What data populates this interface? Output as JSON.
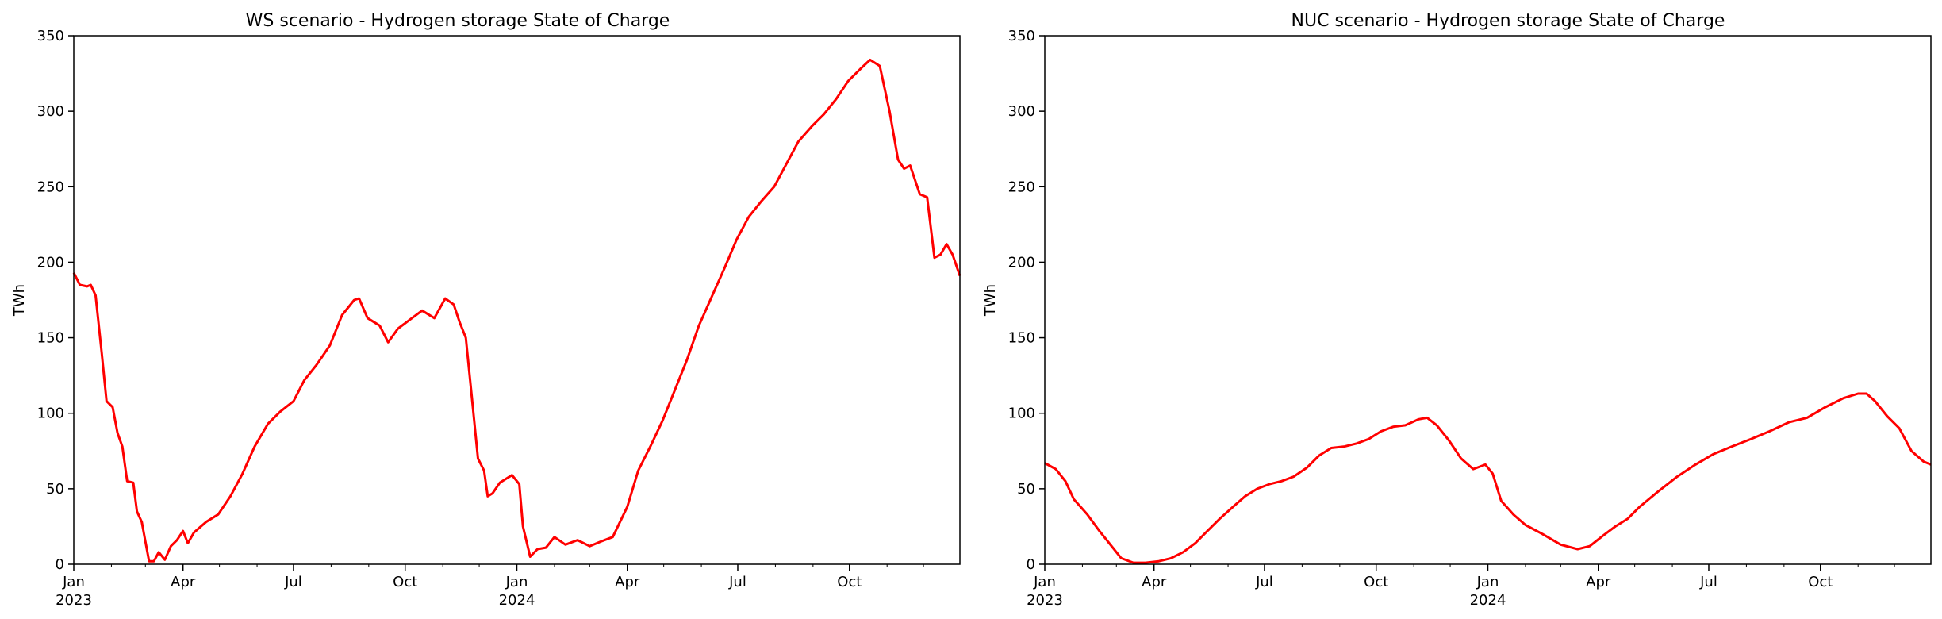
{
  "chart_data": [
    {
      "type": "line",
      "title": "WS scenario - Hydrogen storage State of Charge",
      "xlabel": "",
      "ylabel": "TWh",
      "ylim": [
        0,
        350
      ],
      "xlim": [
        "2023-01-01",
        "2024-12-31"
      ],
      "grid": false,
      "color": "#ff0000",
      "x_ticks": [
        {
          "date": "2023-01-01",
          "label": "Jan",
          "year": "2023"
        },
        {
          "date": "2023-04-01",
          "label": "Apr",
          "year": ""
        },
        {
          "date": "2023-07-01",
          "label": "Jul",
          "year": ""
        },
        {
          "date": "2023-10-01",
          "label": "Oct",
          "year": ""
        },
        {
          "date": "2024-01-01",
          "label": "Jan",
          "year": "2024"
        },
        {
          "date": "2024-04-01",
          "label": "Apr",
          "year": ""
        },
        {
          "date": "2024-07-01",
          "label": "Jul",
          "year": ""
        },
        {
          "date": "2024-10-01",
          "label": "Oct",
          "year": ""
        }
      ],
      "y_ticks": [
        0,
        50,
        100,
        150,
        200,
        250,
        300,
        350
      ],
      "series": [
        {
          "points": [
            [
              "2023-01-01",
              193
            ],
            [
              "2023-01-06",
              185
            ],
            [
              "2023-01-12",
              184
            ],
            [
              "2023-01-15",
              185
            ],
            [
              "2023-01-19",
              178
            ],
            [
              "2023-01-24",
              140
            ],
            [
              "2023-01-28",
              108
            ],
            [
              "2023-02-02",
              104
            ],
            [
              "2023-02-06",
              87
            ],
            [
              "2023-02-10",
              78
            ],
            [
              "2023-02-14",
              55
            ],
            [
              "2023-02-19",
              54
            ],
            [
              "2023-02-22",
              35
            ],
            [
              "2023-02-26",
              28
            ],
            [
              "2023-03-01",
              15
            ],
            [
              "2023-03-04",
              2
            ],
            [
              "2023-03-08",
              2
            ],
            [
              "2023-03-12",
              8
            ],
            [
              "2023-03-17",
              3
            ],
            [
              "2023-03-22",
              12
            ],
            [
              "2023-03-27",
              16
            ],
            [
              "2023-04-01",
              22
            ],
            [
              "2023-04-05",
              14
            ],
            [
              "2023-04-10",
              21
            ],
            [
              "2023-04-20",
              28
            ],
            [
              "2023-04-30",
              33
            ],
            [
              "2023-05-10",
              45
            ],
            [
              "2023-05-20",
              60
            ],
            [
              "2023-05-30",
              78
            ],
            [
              "2023-06-10",
              93
            ],
            [
              "2023-06-20",
              101
            ],
            [
              "2023-07-01",
              108
            ],
            [
              "2023-07-10",
              122
            ],
            [
              "2023-07-20",
              132
            ],
            [
              "2023-07-31",
              145
            ],
            [
              "2023-08-10",
              165
            ],
            [
              "2023-08-20",
              175
            ],
            [
              "2023-08-24",
              176
            ],
            [
              "2023-08-31",
              163
            ],
            [
              "2023-09-10",
              158
            ],
            [
              "2023-09-17",
              147
            ],
            [
              "2023-09-25",
              156
            ],
            [
              "2023-10-05",
              162
            ],
            [
              "2023-10-15",
              168
            ],
            [
              "2023-10-25",
              163
            ],
            [
              "2023-11-03",
              176
            ],
            [
              "2023-11-10",
              172
            ],
            [
              "2023-11-15",
              160
            ],
            [
              "2023-11-20",
              150
            ],
            [
              "2023-11-25",
              110
            ],
            [
              "2023-11-30",
              70
            ],
            [
              "2023-12-05",
              62
            ],
            [
              "2023-12-08",
              45
            ],
            [
              "2023-12-12",
              47
            ],
            [
              "2023-12-18",
              54
            ],
            [
              "2023-12-28",
              59
            ],
            [
              "2024-01-03",
              53
            ],
            [
              "2024-01-06",
              25
            ],
            [
              "2024-01-12",
              5
            ],
            [
              "2024-01-18",
              10
            ],
            [
              "2024-01-25",
              11
            ],
            [
              "2024-02-01",
              18
            ],
            [
              "2024-02-10",
              13
            ],
            [
              "2024-02-20",
              16
            ],
            [
              "2024-03-01",
              12
            ],
            [
              "2024-03-10",
              15
            ],
            [
              "2024-03-20",
              18
            ],
            [
              "2024-04-01",
              38
            ],
            [
              "2024-04-10",
              62
            ],
            [
              "2024-04-20",
              78
            ],
            [
              "2024-04-30",
              95
            ],
            [
              "2024-05-10",
              115
            ],
            [
              "2024-05-20",
              135
            ],
            [
              "2024-05-30",
              158
            ],
            [
              "2024-06-10",
              178
            ],
            [
              "2024-06-20",
              196
            ],
            [
              "2024-06-30",
              215
            ],
            [
              "2024-07-10",
              230
            ],
            [
              "2024-07-20",
              240
            ],
            [
              "2024-07-31",
              250
            ],
            [
              "2024-08-10",
              265
            ],
            [
              "2024-08-20",
              280
            ],
            [
              "2024-08-31",
              290
            ],
            [
              "2024-09-10",
              298
            ],
            [
              "2024-09-20",
              308
            ],
            [
              "2024-09-30",
              320
            ],
            [
              "2024-10-10",
              328
            ],
            [
              "2024-10-18",
              334
            ],
            [
              "2024-10-26",
              330
            ],
            [
              "2024-11-03",
              300
            ],
            [
              "2024-11-10",
              268
            ],
            [
              "2024-11-15",
              262
            ],
            [
              "2024-11-20",
              264
            ],
            [
              "2024-11-28",
              245
            ],
            [
              "2024-12-04",
              243
            ],
            [
              "2024-12-10",
              203
            ],
            [
              "2024-12-15",
              205
            ],
            [
              "2024-12-20",
              212
            ],
            [
              "2024-12-25",
              205
            ],
            [
              "2024-12-31",
              191
            ]
          ]
        }
      ]
    },
    {
      "type": "line",
      "title": "NUC scenario - Hydrogen storage State of Charge",
      "xlabel": "",
      "ylabel": "TWh",
      "ylim": [
        0,
        350
      ],
      "xlim": [
        "2023-01-01",
        "2024-12-31"
      ],
      "grid": false,
      "color": "#ff0000",
      "x_ticks": [
        {
          "date": "2023-01-01",
          "label": "Jan",
          "year": "2023"
        },
        {
          "date": "2023-04-01",
          "label": "Apr",
          "year": ""
        },
        {
          "date": "2023-07-01",
          "label": "Jul",
          "year": ""
        },
        {
          "date": "2023-10-01",
          "label": "Oct",
          "year": ""
        },
        {
          "date": "2024-01-01",
          "label": "Jan",
          "year": "2024"
        },
        {
          "date": "2024-04-01",
          "label": "Apr",
          "year": ""
        },
        {
          "date": "2024-07-01",
          "label": "Jul",
          "year": ""
        },
        {
          "date": "2024-10-01",
          "label": "Oct",
          "year": ""
        }
      ],
      "y_ticks": [
        0,
        50,
        100,
        150,
        200,
        250,
        300,
        350
      ],
      "series": [
        {
          "points": [
            [
              "2023-01-01",
              67
            ],
            [
              "2023-01-10",
              63
            ],
            [
              "2023-01-18",
              55
            ],
            [
              "2023-01-25",
              43
            ],
            [
              "2023-02-05",
              33
            ],
            [
              "2023-02-15",
              22
            ],
            [
              "2023-02-25",
              12
            ],
            [
              "2023-03-05",
              4
            ],
            [
              "2023-03-15",
              1
            ],
            [
              "2023-03-25",
              1
            ],
            [
              "2023-04-05",
              2
            ],
            [
              "2023-04-15",
              4
            ],
            [
              "2023-04-25",
              8
            ],
            [
              "2023-05-05",
              14
            ],
            [
              "2023-05-15",
              22
            ],
            [
              "2023-05-25",
              30
            ],
            [
              "2023-06-05",
              38
            ],
            [
              "2023-06-15",
              45
            ],
            [
              "2023-06-25",
              50
            ],
            [
              "2023-07-05",
              53
            ],
            [
              "2023-07-15",
              55
            ],
            [
              "2023-07-25",
              58
            ],
            [
              "2023-08-05",
              64
            ],
            [
              "2023-08-15",
              72
            ],
            [
              "2023-08-25",
              77
            ],
            [
              "2023-09-05",
              78
            ],
            [
              "2023-09-15",
              80
            ],
            [
              "2023-09-25",
              83
            ],
            [
              "2023-10-05",
              88
            ],
            [
              "2023-10-15",
              91
            ],
            [
              "2023-10-25",
              92
            ],
            [
              "2023-11-05",
              96
            ],
            [
              "2023-11-12",
              97
            ],
            [
              "2023-11-20",
              92
            ],
            [
              "2023-11-30",
              82
            ],
            [
              "2023-12-10",
              70
            ],
            [
              "2023-12-20",
              63
            ],
            [
              "2023-12-30",
              66
            ],
            [
              "2024-01-05",
              60
            ],
            [
              "2024-01-12",
              42
            ],
            [
              "2024-01-22",
              33
            ],
            [
              "2024-02-01",
              26
            ],
            [
              "2024-02-15",
              20
            ],
            [
              "2024-03-01",
              13
            ],
            [
              "2024-03-15",
              10
            ],
            [
              "2024-03-25",
              12
            ],
            [
              "2024-04-05",
              19
            ],
            [
              "2024-04-15",
              25
            ],
            [
              "2024-04-25",
              30
            ],
            [
              "2024-05-05",
              38
            ],
            [
              "2024-05-20",
              48
            ],
            [
              "2024-06-05",
              58
            ],
            [
              "2024-06-20",
              66
            ],
            [
              "2024-07-05",
              73
            ],
            [
              "2024-07-20",
              78
            ],
            [
              "2024-08-05",
              83
            ],
            [
              "2024-08-20",
              88
            ],
            [
              "2024-09-05",
              94
            ],
            [
              "2024-09-20",
              97
            ],
            [
              "2024-10-05",
              104
            ],
            [
              "2024-10-20",
              110
            ],
            [
              "2024-11-01",
              113
            ],
            [
              "2024-11-08",
              113
            ],
            [
              "2024-11-15",
              108
            ],
            [
              "2024-11-25",
              98
            ],
            [
              "2024-12-05",
              90
            ],
            [
              "2024-12-15",
              75
            ],
            [
              "2024-12-25",
              68
            ],
            [
              "2024-12-31",
              66
            ]
          ]
        }
      ]
    }
  ]
}
